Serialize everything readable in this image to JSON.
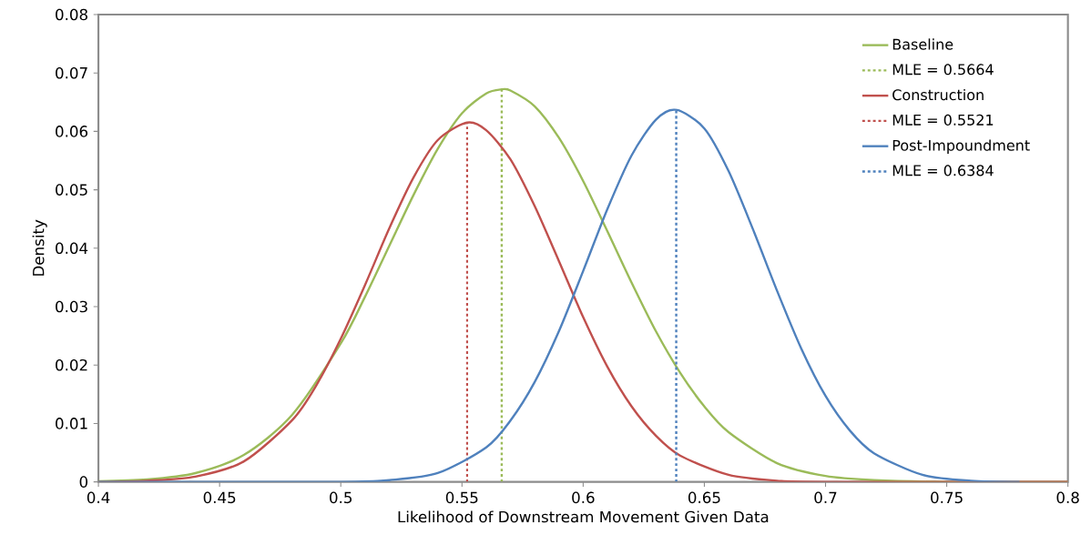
{
  "chart_data": {
    "type": "line",
    "xlabel": "Likelihood of Downstream Movement Given Data",
    "ylabel": "Density",
    "xlim": [
      0.4,
      0.8
    ],
    "ylim": [
      0,
      0.08
    ],
    "xticks": [
      0.4,
      0.45,
      0.5,
      0.55,
      0.6,
      0.65,
      0.7,
      0.75,
      0.8
    ],
    "yticks": [
      0,
      0.01,
      0.02,
      0.03,
      0.04,
      0.05,
      0.06,
      0.07,
      0.08
    ],
    "legend": "top right",
    "grid": false,
    "series": [
      {
        "name": "Baseline",
        "color": "#9bbb59",
        "line_style": "solid",
        "x": [
          0.4,
          0.42,
          0.44,
          0.46,
          0.48,
          0.5,
          0.51,
          0.52,
          0.53,
          0.54,
          0.55,
          0.56,
          0.5664,
          0.57,
          0.58,
          0.59,
          0.6,
          0.61,
          0.62,
          0.63,
          0.64,
          0.65,
          0.66,
          0.68,
          0.7,
          0.72,
          0.75,
          0.8
        ],
        "values": [
          0.0001,
          0.0004,
          0.0015,
          0.0046,
          0.0115,
          0.0237,
          0.0317,
          0.0404,
          0.0491,
          0.057,
          0.0631,
          0.0665,
          0.0672,
          0.067,
          0.0643,
          0.0589,
          0.0515,
          0.0429,
          0.0341,
          0.0258,
          0.0187,
          0.0129,
          0.0085,
          0.0032,
          0.001,
          0.0003,
          0,
          0
        ]
      },
      {
        "name": "MLE = 0.5664",
        "color": "#9bbb59",
        "line_style": "dotted",
        "x": [
          0.5664,
          0.5664
        ],
        "values": [
          0,
          0.0672
        ]
      },
      {
        "name": "Construction",
        "color": "#c0504d",
        "line_style": "solid",
        "x": [
          0.4,
          0.42,
          0.44,
          0.46,
          0.48,
          0.49,
          0.5,
          0.51,
          0.52,
          0.53,
          0.54,
          0.5521,
          0.56,
          0.57,
          0.58,
          0.59,
          0.6,
          0.61,
          0.62,
          0.63,
          0.64,
          0.66,
          0.68,
          0.7,
          0.8
        ],
        "values": [
          0,
          0.0002,
          0.0009,
          0.0035,
          0.0106,
          0.0166,
          0.0245,
          0.0337,
          0.0434,
          0.0521,
          0.0585,
          0.0615,
          0.0602,
          0.0552,
          0.0472,
          0.0378,
          0.0282,
          0.0197,
          0.0129,
          0.0079,
          0.0045,
          0.0012,
          0.0002,
          0,
          0
        ]
      },
      {
        "name": "MLE = 0.5521",
        "color": "#c0504d",
        "line_style": "dotted",
        "x": [
          0.5521,
          0.5521
        ],
        "values": [
          0,
          0.0615
        ]
      },
      {
        "name": "Post-Impoundment",
        "color": "#4f81bd",
        "line_style": "solid",
        "x": [
          0.4,
          0.5,
          0.52,
          0.54,
          0.56,
          0.57,
          0.58,
          0.59,
          0.6,
          0.61,
          0.62,
          0.63,
          0.6384,
          0.65,
          0.66,
          0.67,
          0.68,
          0.69,
          0.7,
          0.71,
          0.72,
          0.74,
          0.76,
          0.78
        ],
        "values": [
          0,
          0,
          0.0003,
          0.0015,
          0.0059,
          0.0105,
          0.0171,
          0.0258,
          0.0361,
          0.0467,
          0.0559,
          0.062,
          0.0637,
          0.0605,
          0.0532,
          0.0433,
          0.0327,
          0.0228,
          0.0147,
          0.0088,
          0.0049,
          0.0012,
          0.0002,
          0
        ]
      },
      {
        "name": "MLE = 0.6384",
        "color": "#4f81bd",
        "line_style": "dotted",
        "x": [
          0.6384,
          0.6384
        ],
        "values": [
          0,
          0.0637
        ]
      }
    ]
  }
}
